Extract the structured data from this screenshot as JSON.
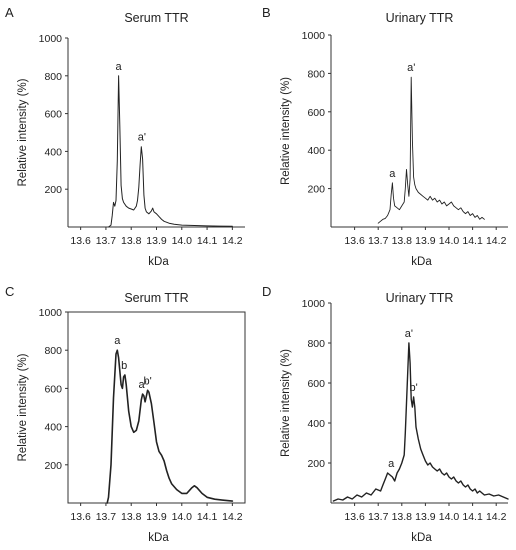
{
  "chart_data": [
    {
      "type": "line",
      "panel": "A",
      "title": "Serum TTR",
      "xlabel": "kDa",
      "ylabel": "Relative intensity (%)",
      "xlim": [
        13.55,
        14.25
      ],
      "ylim": [
        0,
        1000
      ],
      "x_ticks": [
        "13.6",
        "13.7",
        "13.8",
        "13.9",
        "14.0",
        "14.1",
        "14.2"
      ],
      "y_ticks": [
        "200",
        "400",
        "600",
        "800",
        "1000"
      ],
      "series": [
        {
          "points": [
            [
              13.71,
              0
            ],
            [
              13.72,
              10
            ],
            [
              13.725,
              60
            ],
            [
              13.73,
              130
            ],
            [
              13.735,
              110
            ],
            [
              13.74,
              140
            ],
            [
              13.745,
              350
            ],
            [
              13.75,
              800
            ],
            [
              13.755,
              540
            ],
            [
              13.76,
              220
            ],
            [
              13.765,
              150
            ],
            [
              13.77,
              130
            ],
            [
              13.78,
              110
            ],
            [
              13.79,
              100
            ],
            [
              13.8,
              95
            ],
            [
              13.81,
              90
            ],
            [
              13.815,
              100
            ],
            [
              13.82,
              110
            ],
            [
              13.825,
              140
            ],
            [
              13.83,
              210
            ],
            [
              13.835,
              330
            ],
            [
              13.84,
              425
            ],
            [
              13.845,
              360
            ],
            [
              13.85,
              170
            ],
            [
              13.855,
              100
            ],
            [
              13.86,
              80
            ],
            [
              13.87,
              70
            ],
            [
              13.88,
              85
            ],
            [
              13.885,
              100
            ],
            [
              13.89,
              80
            ],
            [
              13.9,
              70
            ],
            [
              13.91,
              55
            ],
            [
              13.92,
              40
            ],
            [
              13.93,
              30
            ],
            [
              13.95,
              20
            ],
            [
              13.97,
              15
            ],
            [
              14.0,
              10
            ],
            [
              14.05,
              8
            ],
            [
              14.1,
              6
            ],
            [
              14.15,
              5
            ],
            [
              14.2,
              4
            ]
          ]
        }
      ],
      "annotations": [
        {
          "text": "a",
          "x": 13.75,
          "y": 800
        },
        {
          "text": "a'",
          "x": 13.842,
          "y": 425
        }
      ]
    },
    {
      "type": "line",
      "panel": "B",
      "title": "Urinary TTR",
      "xlabel": "kDa",
      "ylabel": "Relative intensity (%)",
      "xlim": [
        13.5,
        14.25
      ],
      "ylim": [
        0,
        1000
      ],
      "x_ticks": [
        "13.6",
        "13.7",
        "13.8",
        "13.9",
        "14.0",
        "14.1",
        "14.2"
      ],
      "y_ticks": [
        "200",
        "400",
        "600",
        "800",
        "1000"
      ],
      "series": [
        {
          "points": [
            [
              13.7,
              20
            ],
            [
              13.71,
              30
            ],
            [
              13.72,
              40
            ],
            [
              13.73,
              45
            ],
            [
              13.74,
              60
            ],
            [
              13.75,
              90
            ],
            [
              13.755,
              170
            ],
            [
              13.76,
              230
            ],
            [
              13.765,
              150
            ],
            [
              13.77,
              110
            ],
            [
              13.78,
              100
            ],
            [
              13.79,
              90
            ],
            [
              13.8,
              110
            ],
            [
              13.81,
              130
            ],
            [
              13.815,
              200
            ],
            [
              13.82,
              300
            ],
            [
              13.825,
              220
            ],
            [
              13.83,
              160
            ],
            [
              13.835,
              250
            ],
            [
              13.84,
              780
            ],
            [
              13.845,
              450
            ],
            [
              13.85,
              260
            ],
            [
              13.855,
              220
            ],
            [
              13.86,
              200
            ],
            [
              13.87,
              180
            ],
            [
              13.88,
              170
            ],
            [
              13.89,
              160
            ],
            [
              13.9,
              150
            ],
            [
              13.91,
              140
            ],
            [
              13.92,
              160
            ],
            [
              13.93,
              140
            ],
            [
              13.94,
              150
            ],
            [
              13.95,
              130
            ],
            [
              13.96,
              140
            ],
            [
              13.97,
              120
            ],
            [
              13.98,
              130
            ],
            [
              13.99,
              110
            ],
            [
              14.0,
              120
            ],
            [
              14.01,
              130
            ],
            [
              14.02,
              110
            ],
            [
              14.03,
              100
            ],
            [
              14.04,
              90
            ],
            [
              14.05,
              100
            ],
            [
              14.06,
              80
            ],
            [
              14.07,
              70
            ],
            [
              14.08,
              80
            ],
            [
              14.09,
              60
            ],
            [
              14.1,
              70
            ],
            [
              14.11,
              50
            ],
            [
              14.12,
              60
            ],
            [
              14.13,
              40
            ],
            [
              14.14,
              50
            ],
            [
              14.15,
              40
            ]
          ]
        }
      ],
      "annotations": [
        {
          "text": "a",
          "x": 13.76,
          "y": 230
        },
        {
          "text": "a'",
          "x": 13.84,
          "y": 780
        }
      ]
    },
    {
      "type": "line",
      "panel": "C",
      "title": "Serum TTR",
      "xlabel": "kDa",
      "ylabel": "Relative intensity (%)",
      "xlim": [
        13.55,
        14.25
      ],
      "ylim": [
        0,
        1000
      ],
      "x_ticks": [
        "13.6",
        "13.7",
        "13.8",
        "13.9",
        "14.0",
        "14.1",
        "14.2"
      ],
      "y_ticks": [
        "200",
        "400",
        "600",
        "800",
        "1000"
      ],
      "series": [
        {
          "points": [
            [
              13.705,
              0
            ],
            [
              13.71,
              30
            ],
            [
              13.72,
              200
            ],
            [
              13.73,
              550
            ],
            [
              13.74,
              780
            ],
            [
              13.745,
              800
            ],
            [
              13.75,
              760
            ],
            [
              13.76,
              620
            ],
            [
              13.765,
              600
            ],
            [
              13.77,
              660
            ],
            [
              13.775,
              670
            ],
            [
              13.78,
              620
            ],
            [
              13.79,
              480
            ],
            [
              13.8,
              400
            ],
            [
              13.81,
              370
            ],
            [
              13.82,
              380
            ],
            [
              13.83,
              430
            ],
            [
              13.84,
              540
            ],
            [
              13.845,
              570
            ],
            [
              13.85,
              560
            ],
            [
              13.855,
              530
            ],
            [
              13.86,
              560
            ],
            [
              13.865,
              590
            ],
            [
              13.87,
              580
            ],
            [
              13.88,
              520
            ],
            [
              13.89,
              420
            ],
            [
              13.9,
              320
            ],
            [
              13.91,
              270
            ],
            [
              13.92,
              250
            ],
            [
              13.93,
              220
            ],
            [
              13.94,
              170
            ],
            [
              13.95,
              130
            ],
            [
              13.96,
              100
            ],
            [
              13.98,
              70
            ],
            [
              14.0,
              50
            ],
            [
              14.02,
              50
            ],
            [
              14.04,
              80
            ],
            [
              14.05,
              90
            ],
            [
              14.06,
              80
            ],
            [
              14.08,
              50
            ],
            [
              14.1,
              30
            ],
            [
              14.13,
              20
            ],
            [
              14.16,
              15
            ],
            [
              14.2,
              10
            ]
          ]
        }
      ],
      "annotations": [
        {
          "text": "a",
          "x": 13.745,
          "y": 800
        },
        {
          "text": "b",
          "x": 13.772,
          "y": 670
        },
        {
          "text": "a'",
          "x": 13.845,
          "y": 570
        },
        {
          "text": "b'",
          "x": 13.865,
          "y": 590
        }
      ]
    },
    {
      "type": "line",
      "panel": "D",
      "title": "Urinary TTR",
      "xlabel": "kDa",
      "ylabel": "Relative intensity (%)",
      "xlim": [
        13.5,
        14.25
      ],
      "ylim": [
        0,
        1000
      ],
      "x_ticks": [
        "13.6",
        "13.7",
        "13.8",
        "13.9",
        "14.0",
        "14.1",
        "14.2"
      ],
      "y_ticks": [
        "200",
        "400",
        "600",
        "800",
        "1000"
      ],
      "series": [
        {
          "points": [
            [
              13.51,
              10
            ],
            [
              13.53,
              20
            ],
            [
              13.55,
              15
            ],
            [
              13.57,
              30
            ],
            [
              13.59,
              20
            ],
            [
              13.61,
              40
            ],
            [
              13.63,
              30
            ],
            [
              13.65,
              50
            ],
            [
              13.67,
              40
            ],
            [
              13.69,
              70
            ],
            [
              13.71,
              60
            ],
            [
              13.72,
              90
            ],
            [
              13.73,
              120
            ],
            [
              13.74,
              150
            ],
            [
              13.75,
              140
            ],
            [
              13.76,
              130
            ],
            [
              13.77,
              110
            ],
            [
              13.78,
              150
            ],
            [
              13.79,
              170
            ],
            [
              13.8,
              200
            ],
            [
              13.81,
              240
            ],
            [
              13.815,
              350
            ],
            [
              13.82,
              500
            ],
            [
              13.825,
              650
            ],
            [
              13.83,
              800
            ],
            [
              13.835,
              700
            ],
            [
              13.84,
              520
            ],
            [
              13.845,
              480
            ],
            [
              13.85,
              530
            ],
            [
              13.855,
              480
            ],
            [
              13.86,
              380
            ],
            [
              13.87,
              320
            ],
            [
              13.88,
              270
            ],
            [
              13.89,
              240
            ],
            [
              13.9,
              210
            ],
            [
              13.91,
              190
            ],
            [
              13.92,
              200
            ],
            [
              13.93,
              180
            ],
            [
              13.94,
              170
            ],
            [
              13.95,
              160
            ],
            [
              13.96,
              170
            ],
            [
              13.97,
              150
            ],
            [
              13.98,
              140
            ],
            [
              13.99,
              150
            ],
            [
              14.0,
              130
            ],
            [
              14.01,
              120
            ],
            [
              14.02,
              130
            ],
            [
              14.03,
              110
            ],
            [
              14.04,
              100
            ],
            [
              14.05,
              110
            ],
            [
              14.06,
              90
            ],
            [
              14.07,
              80
            ],
            [
              14.08,
              90
            ],
            [
              14.09,
              70
            ],
            [
              14.1,
              60
            ],
            [
              14.11,
              70
            ],
            [
              14.12,
              50
            ],
            [
              14.13,
              60
            ],
            [
              14.14,
              50
            ],
            [
              14.15,
              40
            ],
            [
              14.17,
              45
            ],
            [
              14.19,
              35
            ],
            [
              14.21,
              40
            ],
            [
              14.23,
              30
            ],
            [
              14.25,
              20
            ]
          ]
        }
      ],
      "annotations": [
        {
          "text": "a",
          "x": 13.755,
          "y": 150
        },
        {
          "text": "a'",
          "x": 13.83,
          "y": 800
        },
        {
          "text": "b'",
          "x": 13.85,
          "y": 530
        }
      ]
    }
  ]
}
